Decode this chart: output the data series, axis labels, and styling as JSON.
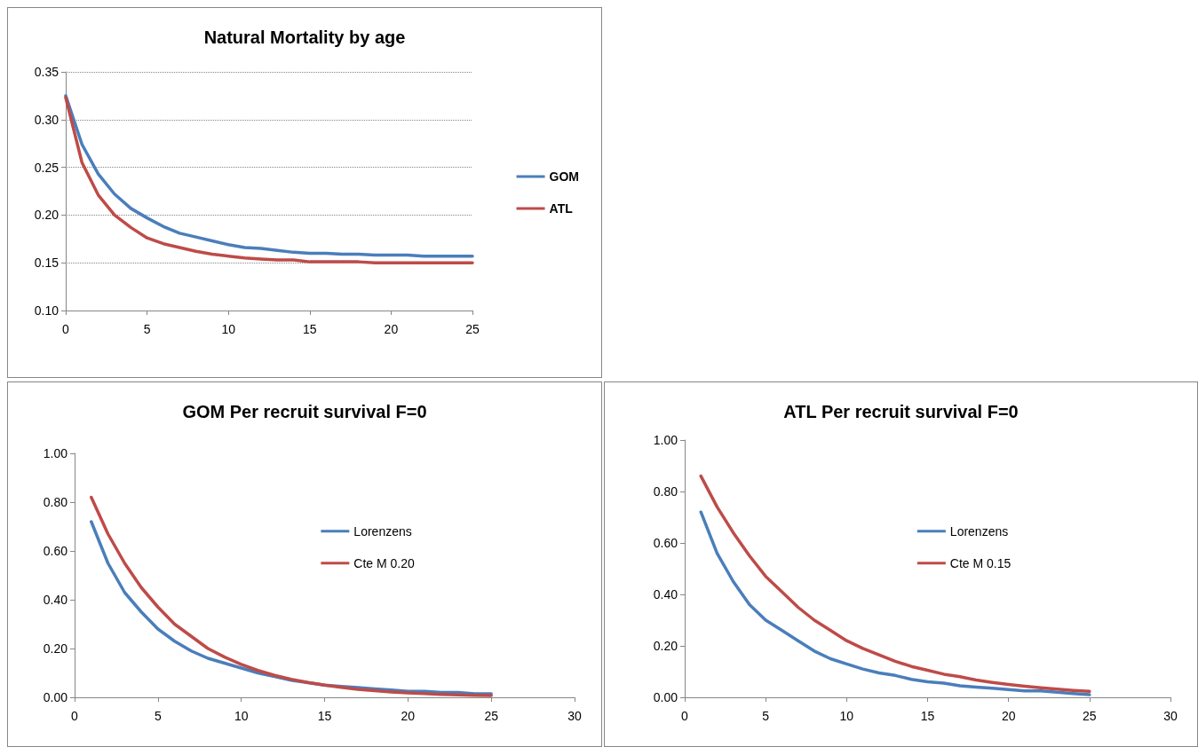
{
  "chart_data": [
    {
      "type": "line",
      "title": "Natural Mortality by age",
      "x": [
        0,
        1,
        2,
        3,
        4,
        5,
        6,
        7,
        8,
        9,
        10,
        11,
        12,
        13,
        14,
        15,
        16,
        17,
        18,
        19,
        20,
        21,
        22,
        23,
        24,
        25
      ],
      "series": [
        {
          "name": "GOM",
          "color": "#4a7ebb",
          "values": [
            0.325,
            0.274,
            0.243,
            0.222,
            0.207,
            0.197,
            0.188,
            0.181,
            0.177,
            0.173,
            0.169,
            0.166,
            0.165,
            0.163,
            0.161,
            0.16,
            0.16,
            0.159,
            0.159,
            0.158,
            0.158,
            0.158,
            0.157,
            0.157,
            0.157,
            0.157
          ]
        },
        {
          "name": "ATL",
          "color": "#be4b48",
          "values": [
            0.323,
            0.255,
            0.221,
            0.2,
            0.187,
            0.176,
            0.17,
            0.166,
            0.162,
            0.159,
            0.157,
            0.155,
            0.154,
            0.153,
            0.153,
            0.151,
            0.151,
            0.151,
            0.151,
            0.15,
            0.15,
            0.15,
            0.15,
            0.15,
            0.15,
            0.15
          ]
        }
      ],
      "xlim": [
        0,
        25
      ],
      "xticks": [
        0,
        5,
        10,
        15,
        20,
        25
      ],
      "ylim": [
        0.1,
        0.35
      ],
      "yticks": [
        {
          "value": 0.1,
          "label": "0.10"
        },
        {
          "value": 0.15,
          "label": "0.15"
        },
        {
          "value": 0.2,
          "label": "0.20"
        },
        {
          "value": 0.25,
          "label": "0.25"
        },
        {
          "value": 0.3,
          "label": "0.30"
        },
        {
          "value": 0.35,
          "label": "0.35"
        }
      ],
      "grid": "y",
      "legend": "right",
      "marker": "none",
      "line_style": "solid"
    },
    {
      "type": "line",
      "title": "GOM Per recruit survival F=0",
      "x": [
        1,
        2,
        3,
        4,
        5,
        6,
        7,
        8,
        9,
        10,
        11,
        12,
        13,
        14,
        15,
        16,
        17,
        18,
        19,
        20,
        21,
        22,
        23,
        24,
        25
      ],
      "series": [
        {
          "name": "Lorenzens",
          "color": "#4a7ebb",
          "values": [
            0.72,
            0.55,
            0.43,
            0.35,
            0.28,
            0.23,
            0.19,
            0.16,
            0.14,
            0.12,
            0.1,
            0.085,
            0.07,
            0.06,
            0.05,
            0.045,
            0.04,
            0.035,
            0.03,
            0.025,
            0.025,
            0.02,
            0.02,
            0.015,
            0.015
          ]
        },
        {
          "name": "Cte M 0.20",
          "color": "#be4b48",
          "values": [
            0.82,
            0.67,
            0.55,
            0.45,
            0.37,
            0.3,
            0.25,
            0.2,
            0.165,
            0.135,
            0.11,
            0.09,
            0.074,
            0.061,
            0.05,
            0.041,
            0.033,
            0.027,
            0.022,
            0.018,
            0.015,
            0.012,
            0.01,
            0.008,
            0.007
          ]
        }
      ],
      "xlim": [
        0,
        30
      ],
      "xticks": [
        0,
        5,
        10,
        15,
        20,
        25,
        30
      ],
      "ylim": [
        0,
        1
      ],
      "yticks": [
        {
          "value": 0,
          "label": "0.00"
        },
        {
          "value": 0.2,
          "label": "0.20"
        },
        {
          "value": 0.4,
          "label": "0.40"
        },
        {
          "value": 0.6,
          "label": "0.60"
        },
        {
          "value": 0.8,
          "label": "0.80"
        },
        {
          "value": 1,
          "label": "1.00"
        }
      ],
      "grid": false,
      "legend": "center",
      "marker": "none",
      "line_style": "solid"
    },
    {
      "type": "line",
      "title": "ATL Per recruit survival F=0",
      "x": [
        1,
        2,
        3,
        4,
        5,
        6,
        7,
        8,
        9,
        10,
        11,
        12,
        13,
        14,
        15,
        16,
        17,
        18,
        19,
        20,
        21,
        22,
        23,
        24,
        25
      ],
      "series": [
        {
          "name": "Lorenzens",
          "color": "#4a7ebb",
          "values": [
            0.72,
            0.56,
            0.45,
            0.36,
            0.3,
            0.26,
            0.22,
            0.18,
            0.15,
            0.13,
            0.11,
            0.095,
            0.085,
            0.07,
            0.06,
            0.055,
            0.045,
            0.04,
            0.035,
            0.03,
            0.025,
            0.025,
            0.02,
            0.015,
            0.01
          ]
        },
        {
          "name": "Cte M 0.15",
          "color": "#be4b48",
          "values": [
            0.86,
            0.74,
            0.64,
            0.55,
            0.47,
            0.41,
            0.35,
            0.3,
            0.26,
            0.22,
            0.19,
            0.165,
            0.14,
            0.12,
            0.105,
            0.09,
            0.08,
            0.067,
            0.058,
            0.05,
            0.043,
            0.037,
            0.032,
            0.027,
            0.023
          ]
        }
      ],
      "xlim": [
        0,
        30
      ],
      "xticks": [
        0,
        5,
        10,
        15,
        20,
        25,
        30
      ],
      "ylim": [
        0,
        1
      ],
      "yticks": [
        {
          "value": 0,
          "label": "0.00"
        },
        {
          "value": 0.2,
          "label": "0.20"
        },
        {
          "value": 0.4,
          "label": "0.40"
        },
        {
          "value": 0.6,
          "label": "0.60"
        },
        {
          "value": 0.8,
          "label": "0.80"
        },
        {
          "value": 1,
          "label": "1.00"
        }
      ],
      "grid": false,
      "legend": "center",
      "marker": "none",
      "line_style": "solid"
    }
  ]
}
